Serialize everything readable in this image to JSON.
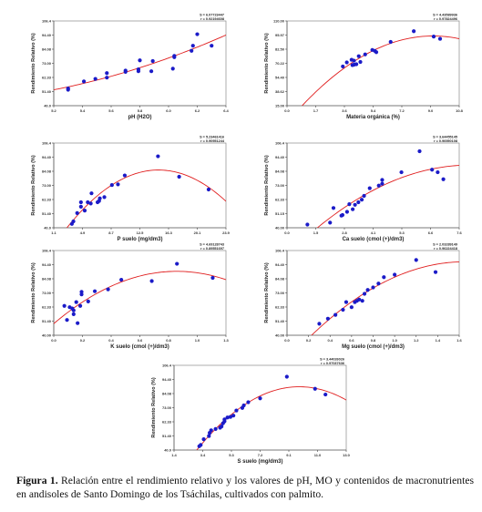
{
  "caption": {
    "label": "Figura 1.",
    "text": "Relación entre el rendimiento relativo y los valores de pH, MO y contenidos de macronutrientes en andisoles de Santo Domingo de los Tsáchilas, cultivados con palmito."
  },
  "chart_data": [
    {
      "id": "ph",
      "type": "scatter",
      "xlabel": "pH (H2O)",
      "ylabel": "Rendimiento Relativo (%)",
      "xlim": [
        5.2,
        6.4
      ],
      "ylim": [
        40.0,
        106.4
      ],
      "xticks": [
        "5.2",
        "5.4",
        "5.6",
        "5.8",
        "6.0",
        "6.2",
        "6.4"
      ],
      "yticks": [
        "40.0",
        "51.40",
        "62.33",
        "73.00",
        "84.08",
        "94.40",
        "106.4"
      ],
      "stats": [
        "S = 6.07723447",
        "r = 0.92194608"
      ],
      "fit": [
        0,
        1
      ],
      "x": [
        5.3,
        5.3,
        5.41,
        5.49,
        5.57,
        5.57,
        5.7,
        5.7,
        5.79,
        5.79,
        5.8,
        5.88,
        5.89,
        6.03,
        6.04,
        6.04,
        6.16,
        6.17,
        6.2,
        6.3
      ],
      "y": [
        52.5,
        53.5,
        59.0,
        61.0,
        62.0,
        65.5,
        66.5,
        67.5,
        67.0,
        68.5,
        75.5,
        67.0,
        75.0,
        69.0,
        78.0,
        79.0,
        83.0,
        87.0,
        96.0,
        87.0
      ]
    },
    {
      "id": "mo",
      "type": "scatter",
      "xlabel": "Materia orgánica (%)",
      "ylabel": "Rendimiento Relativo (%)",
      "xlim": [
        0.0,
        10.8
      ],
      "ylim": [
        15.0,
        110.0
      ],
      "xticks": [
        "0.0",
        "1.7",
        "3.6",
        "5.4",
        "7.2",
        "9.0",
        "10.8"
      ],
      "yticks": [
        "15.00",
        "38.62",
        "54.40",
        "70.22",
        "82.50",
        "95.97",
        "110.00"
      ],
      "stats": [
        "S = 4.43589936",
        "r = 0.97824496"
      ],
      "fit": [
        0,
        1
      ],
      "x": [
        3.5,
        3.75,
        4.05,
        4.1,
        4.2,
        4.2,
        4.35,
        4.5,
        4.6,
        4.9,
        5.35,
        5.5,
        5.6,
        6.5,
        7.95,
        9.2,
        9.6
      ],
      "y": [
        59.0,
        63.5,
        66.5,
        60.5,
        65.5,
        61.0,
        61.5,
        70.5,
        64.0,
        72.5,
        77.5,
        76.5,
        75.0,
        86.5,
        98.5,
        92.5,
        90.0
      ]
    },
    {
      "id": "p",
      "type": "scatter",
      "xlabel": "P suelo (mg/dm3)",
      "ylabel": "Rendimiento Relativo (%)",
      "xlim": [
        1.1,
        23.9
      ],
      "ylim": [
        40.0,
        106.4
      ],
      "xticks": [
        "1.1",
        "4.9",
        "8.7",
        "12.5",
        "16.3",
        "20.1",
        "23.9"
      ],
      "yticks": [
        "40.0",
        "51.40",
        "62.33",
        "73.00",
        "84.08",
        "94.40",
        "106.4"
      ],
      "stats": [
        "S = 5.23461416",
        "r = 0.90951244"
      ],
      "fit": [
        0,
        1
      ],
      "x": [
        3.5,
        3.7,
        4.2,
        4.7,
        4.7,
        5.2,
        5.6,
        6.0,
        6.1,
        6.9,
        7.1,
        7.2,
        7.8,
        8.8,
        9.6,
        10.5,
        14.9,
        17.7,
        21.6
      ],
      "y": [
        43.0,
        45.0,
        51.5,
        56.5,
        60.0,
        53.5,
        60.0,
        59.0,
        67.0,
        60.0,
        61.0,
        63.0,
        64.0,
        73.5,
        74.0,
        81.0,
        96.0,
        80.0,
        70.0
      ]
    },
    {
      "id": "ca",
      "type": "scatter",
      "xlabel": "Ca suelo (cmol (+)/dm3)",
      "ylabel": "Rendimiento Relativo (%)",
      "xlim": [
        0.0,
        7.6
      ],
      "ylim": [
        40.0,
        106.4
      ],
      "xticks": [
        "0.0",
        "1.5",
        "2.8",
        "4.1",
        "5.3",
        "6.6",
        "7.6"
      ],
      "yticks": [
        "40.00",
        "51.15",
        "62.33",
        "73.00",
        "84.08",
        "94.40",
        "106.4"
      ],
      "stats": [
        "S = 3.64455145",
        "r = 0.96950108"
      ],
      "fit": [
        0,
        1
      ],
      "x": [
        0.9,
        1.9,
        2.05,
        2.4,
        2.45,
        2.65,
        2.75,
        2.9,
        3.0,
        3.15,
        3.3,
        3.4,
        3.65,
        4.05,
        4.2,
        4.2,
        5.05,
        5.85,
        6.4,
        6.65,
        6.9
      ],
      "y": [
        42.5,
        44.0,
        55.5,
        49.5,
        50.0,
        52.5,
        58.5,
        54.5,
        58.0,
        60.0,
        62.0,
        65.0,
        71.0,
        73.0,
        74.5,
        77.5,
        83.5,
        100.0,
        85.5,
        83.5,
        78.0
      ]
    },
    {
      "id": "k",
      "type": "scatter",
      "xlabel": "K suelo (cmol (+)/dm3)",
      "ylabel": "Rendimiento Relativo (%)",
      "xlim": [
        0.0,
        1.3
      ],
      "ylim": [
        40.0,
        106.4
      ],
      "xticks": [
        "0.0",
        "0.2",
        "0.4",
        "0.6",
        "0.8",
        "1.0",
        "1.3"
      ],
      "yticks": [
        "40.00",
        "51.40",
        "62.33",
        "73.00",
        "84.08",
        "94.40",
        "106.4"
      ],
      "stats": [
        "S = 4.69128743",
        "r = 0.89551697"
      ],
      "fit": [
        0,
        1
      ],
      "x": [
        0.08,
        0.1,
        0.12,
        0.14,
        0.15,
        0.15,
        0.17,
        0.18,
        0.2,
        0.21,
        0.21,
        0.26,
        0.31,
        0.41,
        0.51,
        0.74,
        0.93,
        1.2
      ],
      "y": [
        63.0,
        52.0,
        62.0,
        61.0,
        56.5,
        59.5,
        66.0,
        49.5,
        63.0,
        72.0,
        74.0,
        66.5,
        74.5,
        76.0,
        83.5,
        82.5,
        96.0,
        85.0
      ]
    },
    {
      "id": "mg",
      "type": "scatter",
      "xlabel": "Mg suelo (cmol (+)/dm3)",
      "ylabel": "Rendimiento Relativo (%)",
      "xlim": [
        0.0,
        1.6
      ],
      "ylim": [
        40.0,
        106.4
      ],
      "xticks": [
        "0.0",
        "0.2",
        "0.4",
        "0.6",
        "0.8",
        "1.0",
        "1.2",
        "1.4",
        "1.6"
      ],
      "yticks": [
        "40.00",
        "51.40",
        "62.33",
        "73.00",
        "84.08",
        "94.40",
        "106.4"
      ],
      "stats": [
        "S = 2.03289149",
        "r = 0.96224418"
      ],
      "fit": [
        0,
        1
      ],
      "x": [
        0.3,
        0.38,
        0.45,
        0.52,
        0.55,
        0.6,
        0.63,
        0.65,
        0.67,
        0.7,
        0.72,
        0.75,
        0.8,
        0.85,
        0.9,
        1.0,
        1.2,
        1.38
      ],
      "y": [
        49.0,
        53.0,
        56.0,
        60.0,
        66.0,
        62.0,
        66.0,
        67.0,
        68.0,
        67.0,
        72.5,
        75.5,
        77.5,
        80.5,
        85.5,
        87.5,
        99.0,
        89.5
      ]
    },
    {
      "id": "s",
      "type": "scatter",
      "xlabel": "S suelo (mg/dm3)",
      "ylabel": "Rendimiento Relativo (%)",
      "xlim": [
        1.4,
        13.0
      ],
      "ylim": [
        40.0,
        106.4
      ],
      "xticks": [
        "1.4",
        "3.4",
        "5.3",
        "7.2",
        "9.1",
        "11.0",
        "13.0"
      ],
      "yticks": [
        "40.0",
        "51.40",
        "62.33",
        "73.00",
        "84.08",
        "94.40",
        "106.4"
      ],
      "stats": [
        "S = 3.44026026",
        "r = 0.97037636"
      ],
      "fit": [
        0,
        1
      ],
      "x": [
        3.1,
        3.2,
        3.4,
        3.75,
        3.8,
        3.9,
        4.2,
        4.5,
        4.6,
        4.7,
        4.8,
        4.8,
        5.0,
        5.2,
        5.4,
        5.6,
        6.0,
        6.1,
        6.4,
        7.2,
        9.0,
        10.9,
        11.6
      ],
      "y": [
        43.0,
        44.0,
        48.5,
        51.0,
        53.5,
        55.5,
        56.5,
        57.5,
        58.5,
        61.0,
        62.5,
        64.0,
        65.5,
        66.0,
        67.0,
        71.0,
        73.0,
        75.0,
        77.5,
        80.5,
        97.5,
        88.0,
        83.5
      ]
    }
  ]
}
